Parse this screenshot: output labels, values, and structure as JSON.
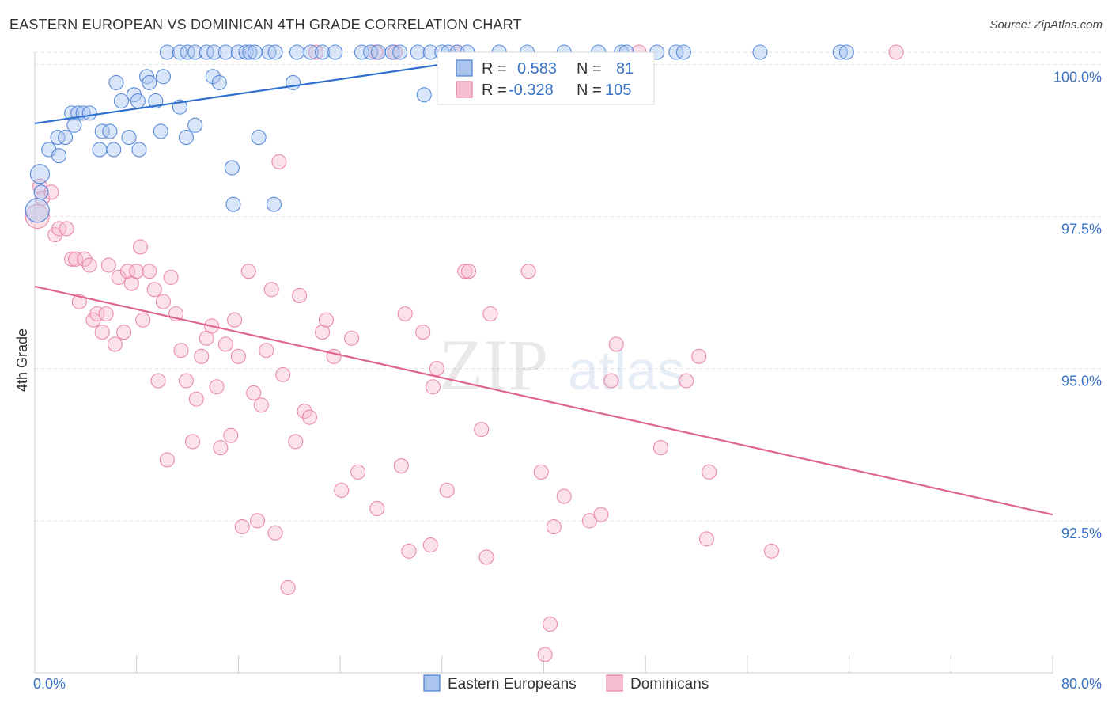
{
  "title": "EASTERN EUROPEAN VS DOMINICAN 4TH GRADE CORRELATION CHART",
  "source": "Source: ZipAtlas.com",
  "watermark": {
    "zip": "ZIP",
    "atlas": "atlas"
  },
  "colors": {
    "blue": "#4a7ed6",
    "blue_fill": "#aac6ef",
    "blue_line": "#2f6fcf",
    "pink": "#e87fa0",
    "pink_fill": "#f6bfd0",
    "pink_line": "#e06490",
    "tick_label": "#3a72c4",
    "grid": "#e3e3e3"
  },
  "legend": {
    "r_label": "R =",
    "n_label": "N =",
    "rows": [
      {
        "series": "Eastern Europeans",
        "r": "0.583",
        "n": "81"
      },
      {
        "series": "Dominicans",
        "r": "-0.328",
        "n": "105"
      }
    ]
  },
  "bottom_legend": [
    "Eastern Europeans",
    "Dominicans"
  ],
  "chart_data": {
    "type": "scatter",
    "title": "EASTERN EUROPEAN VS DOMINICAN 4TH GRADE CORRELATION CHART",
    "xlabel": "",
    "ylabel": "4th Grade",
    "xlim": [
      0,
      80
    ],
    "ylim": [
      90.0,
      100.2
    ],
    "x_tick_labels": [
      "0.0%",
      "80.0%"
    ],
    "y_ticks": [
      100.0,
      97.5,
      95.0,
      92.5
    ],
    "y_tick_labels": [
      "100.0%",
      "97.5%",
      "95.0%",
      "92.5%"
    ],
    "grid": true,
    "legend_position": "top-center",
    "series": [
      {
        "name": "Eastern Europeans",
        "r": 0.583,
        "n": 81,
        "trend": {
          "x": [
            0,
            32
          ],
          "y": [
            99.03,
            100.0
          ]
        },
        "points": [
          [
            0.2,
            97.6,
            1
          ],
          [
            0.4,
            98.2,
            0.8
          ],
          [
            0.5,
            97.9,
            0.5
          ],
          [
            1.1,
            98.6,
            0.5
          ],
          [
            1.8,
            98.8,
            0.5
          ],
          [
            1.9,
            98.5,
            0.5
          ],
          [
            2.4,
            98.8,
            0.5
          ],
          [
            2.9,
            99.2,
            0.5
          ],
          [
            3.1,
            99.0,
            0.5
          ],
          [
            3.4,
            99.2,
            0.5
          ],
          [
            3.8,
            99.2,
            0.5
          ],
          [
            4.3,
            99.2,
            0.5
          ],
          [
            5.1,
            98.6,
            0.5
          ],
          [
            5.3,
            98.9,
            0.5
          ],
          [
            5.9,
            98.9,
            0.5
          ],
          [
            6.2,
            98.6,
            0.5
          ],
          [
            6.4,
            99.7,
            0.5
          ],
          [
            6.8,
            99.4,
            0.5
          ],
          [
            7.4,
            98.8,
            0.5
          ],
          [
            7.8,
            99.5,
            0.5
          ],
          [
            8.1,
            99.4,
            0.5
          ],
          [
            8.2,
            98.6,
            0.5
          ],
          [
            8.8,
            99.8,
            0.5
          ],
          [
            9.0,
            99.7,
            0.5
          ],
          [
            9.5,
            99.4,
            0.5
          ],
          [
            9.9,
            98.9,
            0.5
          ],
          [
            10.1,
            99.8,
            0.5
          ],
          [
            11.4,
            99.3,
            0.5
          ],
          [
            11.9,
            98.8,
            0.5
          ],
          [
            12.6,
            99.0,
            0.5
          ],
          [
            14.0,
            99.8,
            0.5
          ],
          [
            14.5,
            99.7,
            0.5
          ],
          [
            15.5,
            98.3,
            0.5
          ],
          [
            15.6,
            97.7,
            0.5
          ],
          [
            17.6,
            98.8,
            0.5
          ],
          [
            18.8,
            97.7,
            0.5
          ],
          [
            20.3,
            99.7,
            0.5
          ],
          [
            30.6,
            99.5,
            0.5
          ],
          [
            10.4,
            100.2,
            0.5
          ],
          [
            11.4,
            100.2,
            0.5
          ],
          [
            12.0,
            100.2,
            0.5
          ],
          [
            12.6,
            100.2,
            0.5
          ],
          [
            13.5,
            100.2,
            0.5
          ],
          [
            14.1,
            100.2,
            0.5
          ],
          [
            15.0,
            100.2,
            0.5
          ],
          [
            16.0,
            100.2,
            0.5
          ],
          [
            16.6,
            100.2,
            0.5
          ],
          [
            16.9,
            100.2,
            0.5
          ],
          [
            17.3,
            100.2,
            0.5
          ],
          [
            18.4,
            100.2,
            0.5
          ],
          [
            18.9,
            100.2,
            0.5
          ],
          [
            20.6,
            100.2,
            0.5
          ],
          [
            21.7,
            100.2,
            0.5
          ],
          [
            22.6,
            100.2,
            0.5
          ],
          [
            23.6,
            100.2,
            0.5
          ],
          [
            25.7,
            100.2,
            0.5
          ],
          [
            26.4,
            100.2,
            0.5
          ],
          [
            27.0,
            100.2,
            0.5
          ],
          [
            28.1,
            100.2,
            0.5
          ],
          [
            28.7,
            100.2,
            0.5
          ],
          [
            30.1,
            100.2,
            0.5
          ],
          [
            31.1,
            100.2,
            0.5
          ],
          [
            32.0,
            100.2,
            0.5
          ],
          [
            32.5,
            100.2,
            0.5
          ],
          [
            33.2,
            100.2,
            0.5
          ],
          [
            34.0,
            100.2,
            0.5
          ],
          [
            36.5,
            100.2,
            0.5
          ],
          [
            38.7,
            100.2,
            0.5
          ],
          [
            41.6,
            100.2,
            0.5
          ],
          [
            44.3,
            100.2,
            0.5
          ],
          [
            46.1,
            100.2,
            0.5
          ],
          [
            46.5,
            100.2,
            0.5
          ],
          [
            48.9,
            100.2,
            0.5
          ],
          [
            50.4,
            100.2,
            0.5
          ],
          [
            51.0,
            100.2,
            0.5
          ],
          [
            57.0,
            100.2,
            0.5
          ],
          [
            63.3,
            100.2,
            0.5
          ],
          [
            63.8,
            100.2,
            0.5
          ]
        ]
      },
      {
        "name": "Dominicans",
        "r": -0.328,
        "n": 105,
        "trend": {
          "x": [
            0,
            80
          ],
          "y": [
            96.35,
            92.6
          ]
        },
        "points": [
          [
            0.2,
            97.5,
            1.1
          ],
          [
            0.4,
            98.0,
            0.5
          ],
          [
            0.6,
            97.8,
            0.5
          ],
          [
            1.3,
            97.9,
            0.5
          ],
          [
            1.6,
            97.2,
            0.5
          ],
          [
            1.9,
            97.3,
            0.5
          ],
          [
            2.5,
            97.3,
            0.5
          ],
          [
            2.9,
            96.8,
            0.5
          ],
          [
            3.2,
            96.8,
            0.5
          ],
          [
            3.5,
            96.1,
            0.5
          ],
          [
            3.9,
            96.8,
            0.5
          ],
          [
            4.3,
            96.7,
            0.5
          ],
          [
            4.6,
            95.8,
            0.5
          ],
          [
            4.9,
            95.9,
            0.5
          ],
          [
            5.3,
            95.6,
            0.5
          ],
          [
            5.6,
            95.9,
            0.5
          ],
          [
            5.8,
            96.7,
            0.5
          ],
          [
            6.3,
            95.4,
            0.5
          ],
          [
            6.6,
            96.5,
            0.5
          ],
          [
            7.0,
            95.6,
            0.5
          ],
          [
            7.3,
            96.6,
            0.5
          ],
          [
            7.6,
            96.4,
            0.5
          ],
          [
            8.0,
            96.6,
            0.5
          ],
          [
            8.3,
            97.0,
            0.5
          ],
          [
            8.5,
            95.8,
            0.5
          ],
          [
            9.0,
            96.6,
            0.5
          ],
          [
            9.4,
            96.3,
            0.5
          ],
          [
            9.7,
            94.8,
            0.5
          ],
          [
            10.1,
            96.1,
            0.5
          ],
          [
            10.4,
            93.5,
            0.5
          ],
          [
            10.7,
            96.5,
            0.5
          ],
          [
            11.1,
            95.9,
            0.5
          ],
          [
            11.5,
            95.3,
            0.5
          ],
          [
            11.9,
            94.8,
            0.5
          ],
          [
            12.4,
            93.8,
            0.5
          ],
          [
            12.7,
            94.5,
            0.5
          ],
          [
            13.1,
            95.2,
            0.5
          ],
          [
            13.5,
            95.5,
            0.5
          ],
          [
            13.9,
            95.7,
            0.5
          ],
          [
            14.3,
            94.7,
            0.5
          ],
          [
            14.6,
            93.7,
            0.5
          ],
          [
            15.0,
            95.4,
            0.5
          ],
          [
            15.4,
            93.9,
            0.5
          ],
          [
            15.7,
            95.8,
            0.5
          ],
          [
            16.0,
            95.2,
            0.5
          ],
          [
            16.3,
            92.4,
            0.5
          ],
          [
            16.8,
            96.6,
            0.5
          ],
          [
            17.2,
            94.6,
            0.5
          ],
          [
            17.5,
            92.5,
            0.5
          ],
          [
            17.8,
            94.4,
            0.5
          ],
          [
            18.2,
            95.3,
            0.5
          ],
          [
            18.6,
            96.3,
            0.5
          ],
          [
            18.9,
            92.3,
            0.5
          ],
          [
            19.2,
            98.4,
            0.5
          ],
          [
            19.5,
            94.9,
            0.5
          ],
          [
            19.9,
            91.4,
            0.5
          ],
          [
            20.5,
            93.8,
            0.5
          ],
          [
            20.8,
            96.2,
            0.5
          ],
          [
            21.2,
            94.3,
            0.5
          ],
          [
            21.6,
            94.2,
            0.5
          ],
          [
            22.1,
            100.2,
            0.5
          ],
          [
            22.6,
            95.6,
            0.5
          ],
          [
            22.9,
            95.8,
            0.5
          ],
          [
            23.5,
            95.2,
            0.5
          ],
          [
            24.1,
            93.0,
            0.5
          ],
          [
            24.9,
            95.5,
            0.5
          ],
          [
            25.4,
            93.3,
            0.5
          ],
          [
            26.8,
            100.2,
            0.5
          ],
          [
            26.9,
            92.7,
            0.5
          ],
          [
            28.3,
            100.2,
            0.5
          ],
          [
            28.8,
            93.4,
            0.5
          ],
          [
            29.1,
            95.9,
            0.5
          ],
          [
            29.4,
            92.0,
            0.5
          ],
          [
            30.5,
            95.6,
            0.5
          ],
          [
            31.1,
            92.1,
            0.5
          ],
          [
            31.3,
            94.7,
            0.5
          ],
          [
            31.6,
            95.0,
            0.5
          ],
          [
            32.4,
            93.0,
            0.5
          ],
          [
            33.2,
            100.2,
            0.5
          ],
          [
            33.8,
            96.6,
            0.5
          ],
          [
            34.1,
            96.6,
            0.5
          ],
          [
            35.1,
            94.0,
            0.5
          ],
          [
            35.5,
            91.9,
            0.5
          ],
          [
            35.8,
            95.9,
            0.5
          ],
          [
            38.8,
            96.6,
            0.5
          ],
          [
            39.8,
            93.3,
            0.5
          ],
          [
            40.1,
            90.3,
            0.5
          ],
          [
            40.5,
            90.8,
            0.5
          ],
          [
            40.8,
            92.4,
            0.5
          ],
          [
            41.6,
            92.9,
            0.5
          ],
          [
            43.6,
            92.5,
            0.5
          ],
          [
            44.5,
            92.6,
            0.5
          ],
          [
            45.3,
            94.8,
            0.5
          ],
          [
            45.7,
            95.4,
            0.5
          ],
          [
            47.5,
            100.2,
            0.5
          ],
          [
            49.2,
            93.7,
            0.5
          ],
          [
            51.2,
            94.8,
            0.5
          ],
          [
            52.2,
            95.2,
            0.5
          ],
          [
            52.8,
            92.2,
            0.5
          ],
          [
            53.0,
            93.3,
            0.5
          ],
          [
            57.9,
            92.0,
            0.5
          ],
          [
            67.7,
            100.2,
            0.5
          ]
        ]
      }
    ]
  }
}
